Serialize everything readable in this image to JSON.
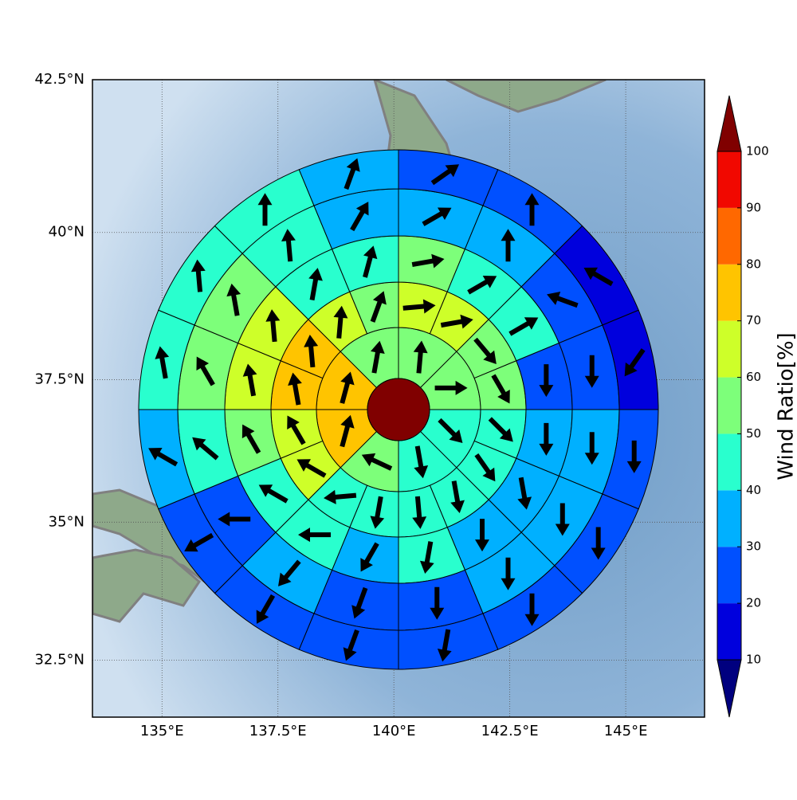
{
  "chart_data": {
    "type": "polar_wind",
    "xlim": [
      133.5,
      146.7
    ],
    "ylim": [
      31.45,
      42.5
    ],
    "xticks": [
      {
        "value": 135,
        "label": "135°E"
      },
      {
        "value": 137.5,
        "label": "137.5°E"
      },
      {
        "value": 140,
        "label": "140°E"
      },
      {
        "value": 142.5,
        "label": "142.5°E"
      },
      {
        "value": 145,
        "label": "145°E"
      }
    ],
    "yticks": [
      {
        "value": 32.5,
        "label": "32.5°N"
      },
      {
        "value": 35,
        "label": "35°N"
      },
      {
        "value": 37.5,
        "label": "37.5°N"
      },
      {
        "value": 40,
        "label": "40°N"
      },
      {
        "value": 42.5,
        "label": "42.5°N"
      }
    ],
    "grid": true,
    "rings": [
      {
        "values": [
          55,
          55,
          45,
          45,
          55,
          75,
          75,
          55
        ],
        "directions": [
          5,
          90,
          135,
          170,
          295,
          15,
          15,
          10
        ]
      },
      {
        "values": [
          65,
          65,
          55,
          55,
          45,
          45,
          45,
          45,
          45,
          45,
          65,
          65,
          75,
          75,
          65,
          55
        ],
        "directions": [
          85,
          80,
          140,
          150,
          135,
          145,
          170,
          175,
          190,
          265,
          300,
          330,
          350,
          355,
          5,
          20
        ]
      },
      {
        "values": [
          55,
          45,
          45,
          25,
          35,
          35,
          35,
          45,
          35,
          45,
          45,
          55,
          65,
          65,
          45,
          45
        ],
        "directions": [
          80,
          60,
          60,
          180,
          180,
          170,
          180,
          190,
          210,
          270,
          300,
          330,
          350,
          355,
          10,
          15
        ]
      },
      {
        "values": [
          35,
          35,
          25,
          25,
          35,
          35,
          35,
          25,
          25,
          35,
          25,
          45,
          55,
          55,
          45,
          35
        ],
        "directions": [
          60,
          0,
          290,
          180,
          180,
          180,
          180,
          180,
          200,
          220,
          270,
          310,
          330,
          350,
          355,
          30
        ]
      },
      {
        "values": [
          25,
          25,
          15,
          15,
          25,
          25,
          25,
          25,
          25,
          25,
          25,
          35,
          45,
          45,
          45,
          35
        ],
        "directions": [
          55,
          0,
          300,
          215,
          180,
          180,
          180,
          190,
          200,
          210,
          240,
          300,
          350,
          355,
          0,
          20
        ]
      }
    ],
    "colorbar": {
      "label": "Wind Ratio[%]",
      "levels": [
        10,
        20,
        30,
        40,
        50,
        60,
        70,
        80,
        90,
        100
      ],
      "colors": [
        "#0000dd",
        "#0050ff",
        "#00b0ff",
        "#29ffce",
        "#7dff7a",
        "#ceff29",
        "#ffc400",
        "#ff6800",
        "#f10800"
      ],
      "under_color": "#00007f",
      "over_color": "#800000"
    }
  }
}
